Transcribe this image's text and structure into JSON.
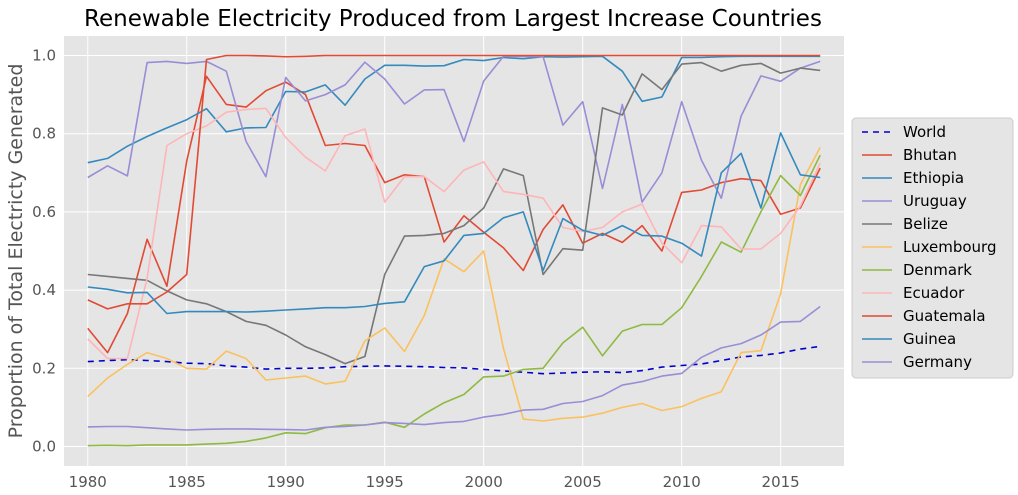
{
  "chart_data": {
    "type": "line",
    "title": "Renewable Electricity Produced from Largest Increase Countries",
    "xlabel": "",
    "ylabel": "Proportion of Total Electricty Generated",
    "xlim": [
      1978.8,
      2018.2
    ],
    "ylim": [
      -0.05,
      1.05
    ],
    "xticks": [
      1980,
      1985,
      1990,
      1995,
      2000,
      2005,
      2010,
      2015
    ],
    "yticks": [
      0.0,
      0.2,
      0.4,
      0.6,
      0.8,
      1.0
    ],
    "ytick_labels": [
      "0.0",
      "0.2",
      "0.4",
      "0.6",
      "0.8",
      "1.0"
    ],
    "x": [
      1980,
      1981,
      1982,
      1983,
      1984,
      1985,
      1986,
      1987,
      1988,
      1989,
      1990,
      1991,
      1992,
      1993,
      1994,
      1995,
      1996,
      1997,
      1998,
      1999,
      2000,
      2001,
      2002,
      2003,
      2004,
      2005,
      2006,
      2007,
      2008,
      2009,
      2010,
      2011,
      2012,
      2013,
      2014,
      2015,
      2016,
      2017
    ],
    "legend_position": "right",
    "series": [
      {
        "name": "World",
        "color": "#0000cc",
        "dashed": true,
        "values": [
          0.217,
          0.22,
          0.222,
          0.22,
          0.217,
          0.213,
          0.212,
          0.206,
          0.203,
          0.198,
          0.2,
          0.2,
          0.201,
          0.204,
          0.205,
          0.206,
          0.205,
          0.204,
          0.202,
          0.201,
          0.197,
          0.193,
          0.19,
          0.186,
          0.188,
          0.19,
          0.191,
          0.189,
          0.194,
          0.203,
          0.207,
          0.211,
          0.22,
          0.229,
          0.233,
          0.239,
          0.249,
          0.256
        ]
      },
      {
        "name": "Bhutan",
        "color": "#E24A33",
        "dashed": false,
        "values": [
          0.302,
          0.24,
          0.34,
          0.53,
          0.41,
          0.73,
          0.947,
          0.875,
          0.868,
          0.91,
          0.932,
          0.9,
          0.77,
          0.775,
          0.77,
          0.675,
          0.695,
          0.69,
          0.523,
          0.59,
          0.548,
          0.508,
          0.45,
          0.555,
          0.618,
          0.52,
          0.545,
          0.522,
          0.565,
          0.5,
          0.65,
          0.656,
          0.675,
          0.685,
          0.68,
          0.594,
          0.61,
          0.712
        ]
      },
      {
        "name": "Ethiopia",
        "color": "#348ABD",
        "dashed": false,
        "values": [
          0.726,
          0.737,
          0.768,
          0.793,
          0.815,
          0.836,
          0.864,
          0.805,
          0.815,
          0.816,
          0.908,
          0.907,
          0.925,
          0.873,
          0.94,
          0.975,
          0.975,
          0.973,
          0.974,
          0.99,
          0.987,
          0.995,
          0.992,
          0.997,
          0.996,
          0.997,
          0.998,
          0.96,
          0.883,
          0.894,
          0.995,
          0.995,
          0.997,
          0.998,
          0.998,
          0.998,
          0.998,
          0.998
        ]
      },
      {
        "name": "Uruguay",
        "color": "#988ED5",
        "dashed": false,
        "values": [
          0.688,
          0.718,
          0.692,
          0.982,
          0.985,
          0.98,
          0.985,
          0.96,
          0.78,
          0.69,
          0.944,
          0.884,
          0.9,
          0.925,
          0.983,
          0.94,
          0.876,
          0.912,
          0.913,
          0.78,
          0.935,
          0.998,
          0.998,
          0.997,
          0.822,
          0.882,
          0.66,
          0.875,
          0.625,
          0.7,
          0.882,
          0.732,
          0.635,
          0.845,
          0.948,
          0.934,
          0.968,
          0.985
        ]
      },
      {
        "name": "Belize",
        "color": "#777777",
        "dashed": false,
        "values": [
          0.44,
          0.435,
          0.43,
          0.425,
          0.398,
          0.375,
          0.365,
          0.345,
          0.32,
          0.31,
          0.285,
          0.255,
          0.235,
          0.212,
          0.23,
          0.44,
          0.538,
          0.54,
          0.545,
          0.565,
          0.61,
          0.71,
          0.693,
          0.44,
          0.506,
          0.502,
          0.866,
          0.848,
          0.953,
          0.913,
          0.978,
          0.982,
          0.96,
          0.975,
          0.98,
          0.955,
          0.968,
          0.962
        ]
      },
      {
        "name": "Luxembourg",
        "color": "#FBC15E",
        "dashed": false,
        "values": [
          0.128,
          0.175,
          0.21,
          0.24,
          0.225,
          0.2,
          0.198,
          0.244,
          0.225,
          0.17,
          0.175,
          0.18,
          0.16,
          0.167,
          0.27,
          0.303,
          0.243,
          0.335,
          0.48,
          0.447,
          0.5,
          0.25,
          0.07,
          0.065,
          0.072,
          0.075,
          0.085,
          0.1,
          0.11,
          0.092,
          0.102,
          0.123,
          0.14,
          0.24,
          0.245,
          0.39,
          0.67,
          0.765
        ]
      },
      {
        "name": "Denmark",
        "color": "#8EBA42",
        "dashed": false,
        "values": [
          0.002,
          0.003,
          0.002,
          0.004,
          0.004,
          0.004,
          0.006,
          0.008,
          0.013,
          0.022,
          0.035,
          0.033,
          0.048,
          0.055,
          0.055,
          0.062,
          0.049,
          0.083,
          0.112,
          0.133,
          0.178,
          0.18,
          0.197,
          0.2,
          0.265,
          0.305,
          0.232,
          0.295,
          0.312,
          0.312,
          0.355,
          0.435,
          0.523,
          0.497,
          0.6,
          0.693,
          0.642,
          0.745
        ]
      },
      {
        "name": "Ecuador",
        "color": "#FFB5B8",
        "dashed": false,
        "values": [
          0.275,
          0.225,
          0.225,
          0.43,
          0.77,
          0.8,
          0.82,
          0.855,
          0.862,
          0.865,
          0.79,
          0.74,
          0.705,
          0.795,
          0.812,
          0.625,
          0.69,
          0.69,
          0.652,
          0.707,
          0.728,
          0.652,
          0.645,
          0.635,
          0.56,
          0.55,
          0.56,
          0.6,
          0.62,
          0.52,
          0.47,
          0.565,
          0.562,
          0.505,
          0.505,
          0.545,
          0.615,
          0.725
        ]
      },
      {
        "name": "Guatemala",
        "color": "#E24A33",
        "dashed": false,
        "values": [
          0.375,
          0.352,
          0.365,
          0.365,
          0.395,
          0.44,
          0.99,
          1.0,
          1.0,
          0.999,
          0.997,
          0.998,
          1.0,
          1.0,
          1.0,
          1.0,
          1.0,
          1.0,
          1.0,
          1.0,
          1.0,
          1.0,
          1.0,
          1.0,
          1.0,
          1.0,
          1.0,
          1.0,
          1.0,
          1.0,
          1.0,
          1.0,
          1.0,
          1.0,
          1.0,
          1.0,
          1.0,
          1.0
        ]
      },
      {
        "name": "Guinea",
        "color": "#348ABD",
        "dashed": false,
        "values": [
          0.408,
          0.402,
          0.393,
          0.394,
          0.34,
          0.345,
          0.345,
          0.345,
          0.344,
          0.346,
          0.349,
          0.352,
          0.355,
          0.355,
          0.358,
          0.366,
          0.37,
          0.46,
          0.475,
          0.54,
          0.545,
          0.585,
          0.6,
          0.45,
          0.583,
          0.553,
          0.54,
          0.565,
          0.54,
          0.538,
          0.52,
          0.487,
          0.7,
          0.75,
          0.61,
          0.802,
          0.695,
          0.688
        ]
      },
      {
        "name": "Germany",
        "color": "#988ED5",
        "dashed": false,
        "values": [
          0.05,
          0.051,
          0.051,
          0.048,
          0.045,
          0.042,
          0.044,
          0.045,
          0.045,
          0.044,
          0.043,
          0.042,
          0.049,
          0.051,
          0.055,
          0.061,
          0.059,
          0.056,
          0.061,
          0.064,
          0.075,
          0.082,
          0.093,
          0.095,
          0.11,
          0.115,
          0.13,
          0.157,
          0.166,
          0.18,
          0.187,
          0.228,
          0.252,
          0.263,
          0.285,
          0.318,
          0.32,
          0.358
        ]
      }
    ]
  }
}
